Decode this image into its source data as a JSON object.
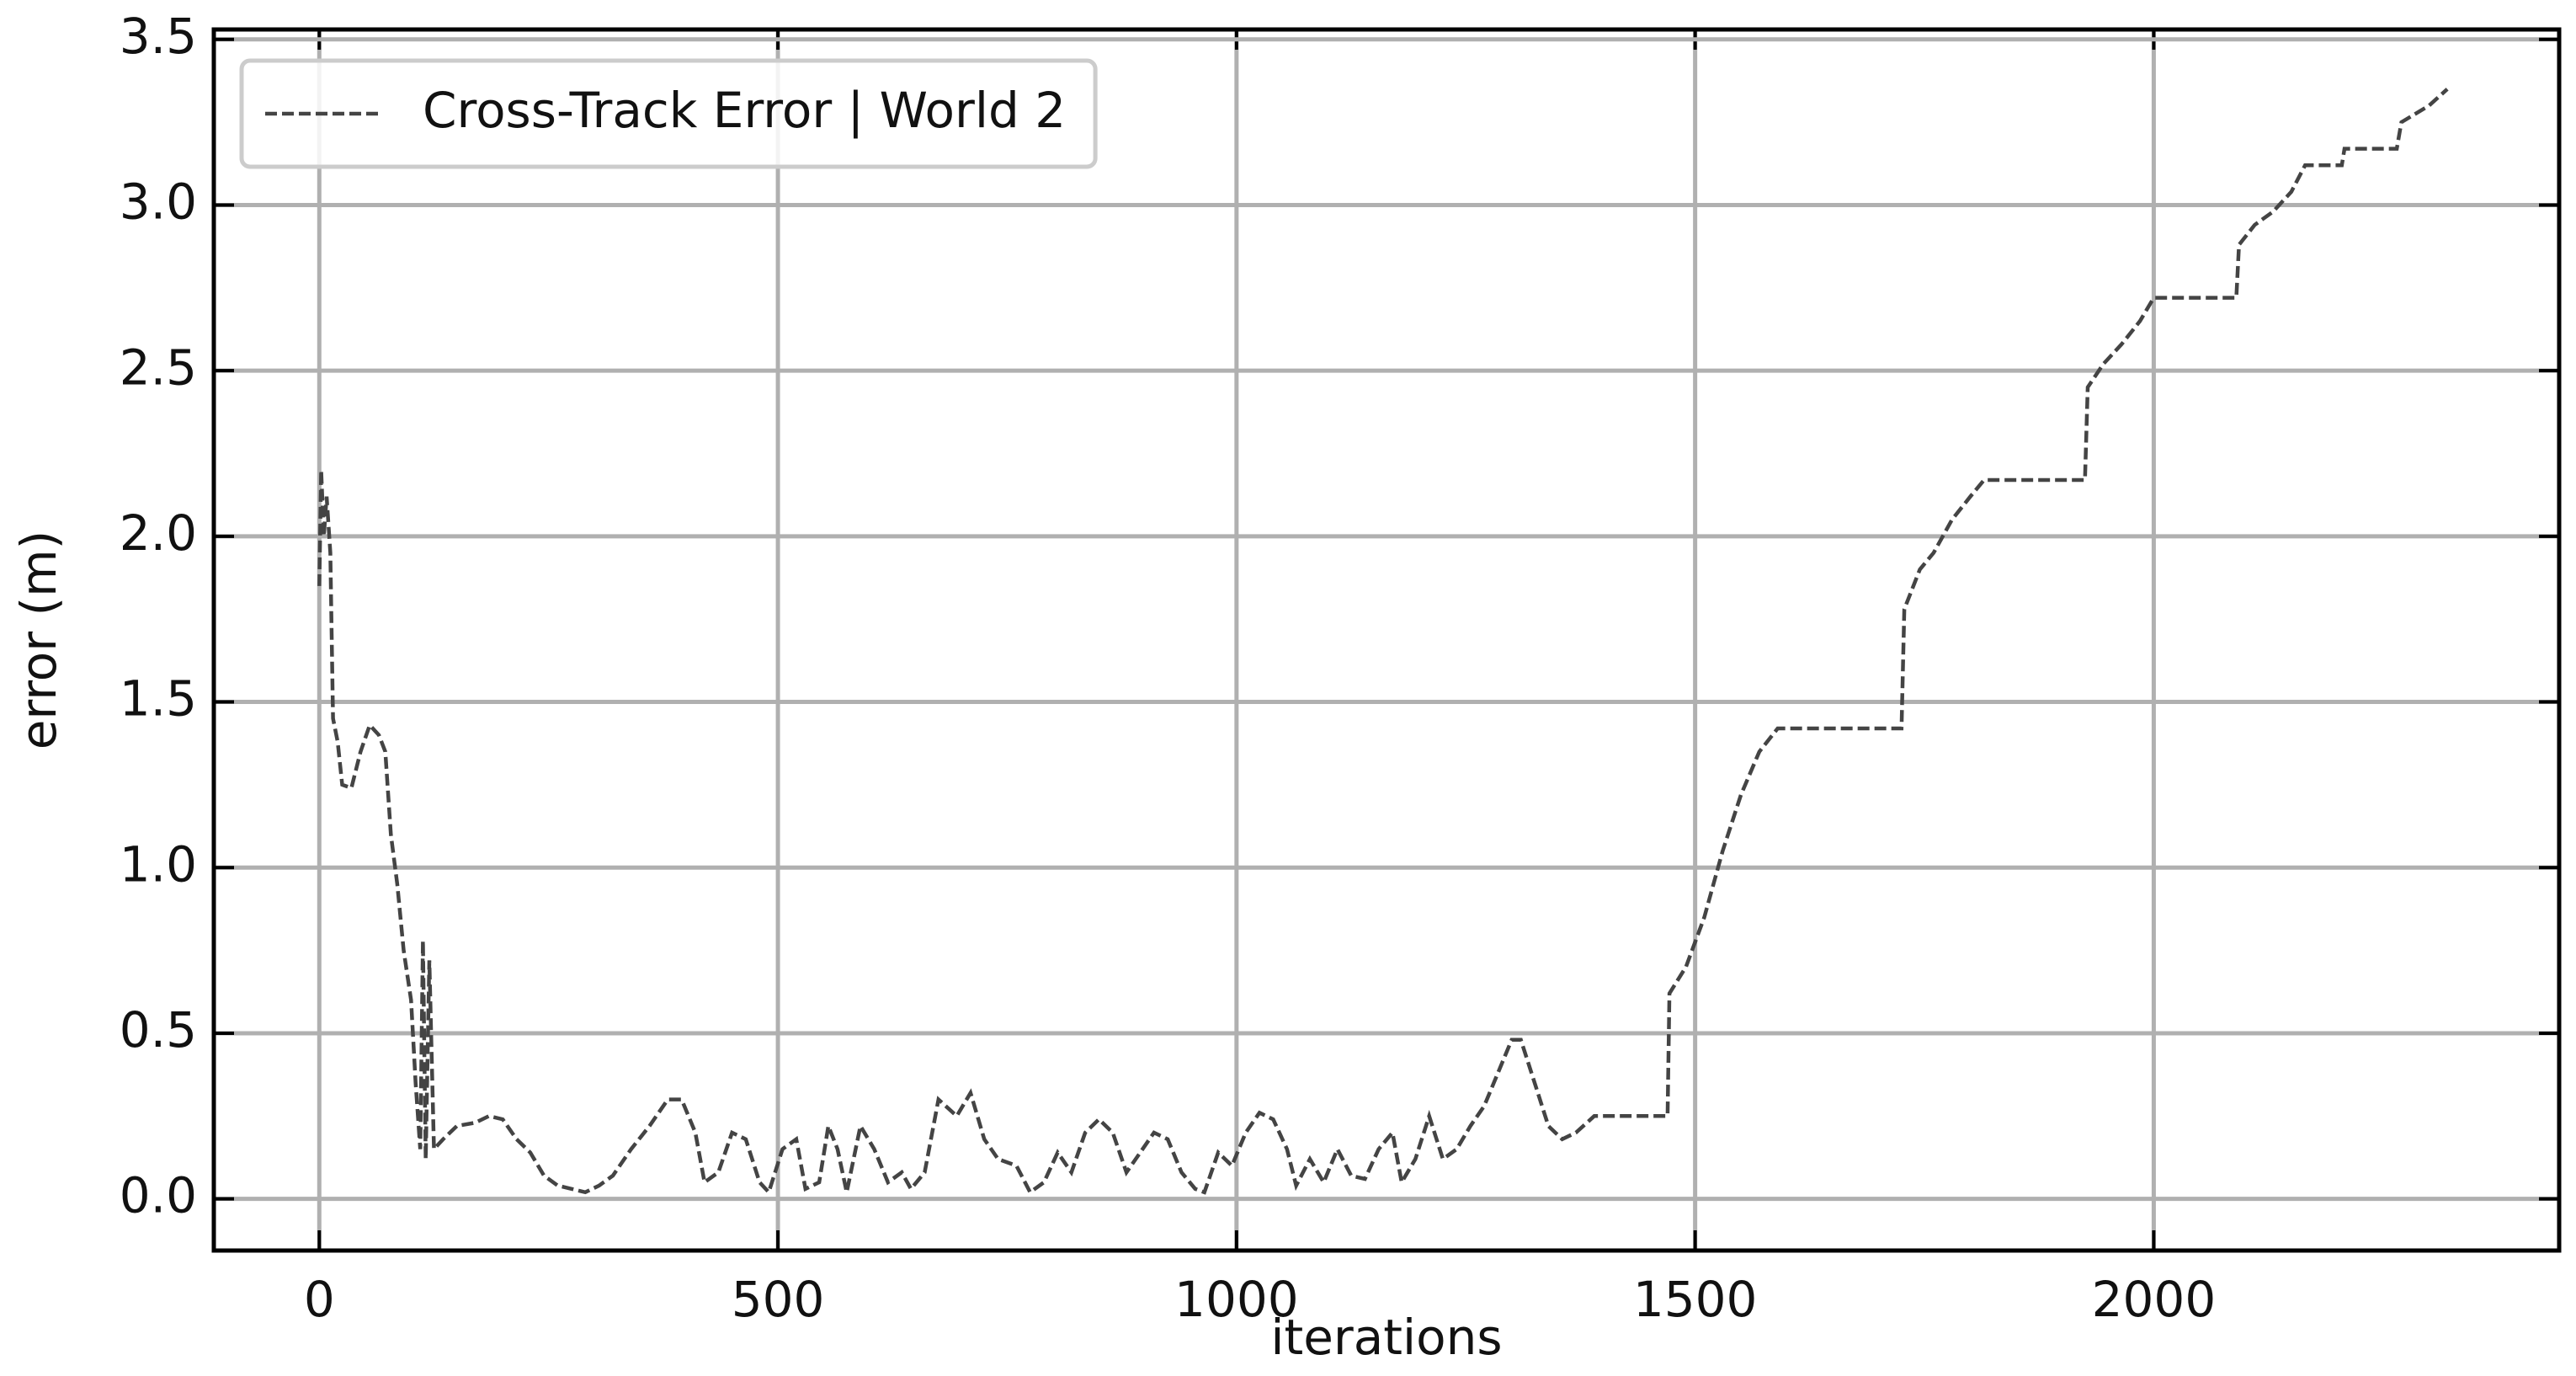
{
  "chart_data": {
    "type": "line",
    "xlabel": "iterations",
    "ylabel": "error (m)",
    "x": [
      0,
      2,
      5,
      8,
      12,
      15,
      20,
      25,
      35,
      45,
      55,
      65,
      72,
      78,
      85,
      92,
      100,
      105,
      110,
      113,
      116,
      120,
      125,
      135,
      150,
      170,
      185,
      200,
      215,
      230,
      245,
      260,
      275,
      290,
      305,
      320,
      340,
      360,
      380,
      395,
      410,
      420,
      435,
      450,
      465,
      480,
      490,
      505,
      520,
      530,
      545,
      555,
      565,
      575,
      590,
      605,
      620,
      635,
      645,
      660,
      675,
      695,
      710,
      725,
      740,
      760,
      775,
      790,
      805,
      820,
      835,
      850,
      865,
      880,
      895,
      910,
      925,
      940,
      955,
      965,
      980,
      995,
      1010,
      1025,
      1040,
      1055,
      1065,
      1080,
      1095,
      1110,
      1125,
      1140,
      1155,
      1170,
      1180,
      1195,
      1210,
      1225,
      1240,
      1255,
      1270,
      1285,
      1300,
      1310,
      1325,
      1340,
      1355,
      1370,
      1390,
      1470,
      1472,
      1490,
      1510,
      1530,
      1550,
      1570,
      1590,
      1725,
      1728,
      1745,
      1760,
      1780,
      1800,
      1815,
      1925,
      1928,
      1945,
      1965,
      1985,
      2000,
      2090,
      2093,
      2110,
      2130,
      2150,
      2165,
      2205,
      2208,
      2265,
      2270,
      2300,
      2320
    ],
    "series": [
      {
        "name": "Cross-Track Error | World 2",
        "color": "#444444",
        "values": [
          1.85,
          2.2,
          2.0,
          2.12,
          1.95,
          1.45,
          1.38,
          1.25,
          1.24,
          1.35,
          1.43,
          1.4,
          1.35,
          1.1,
          0.95,
          0.75,
          0.6,
          0.35,
          0.15,
          0.78,
          0.12,
          0.72,
          0.15,
          0.18,
          0.22,
          0.23,
          0.25,
          0.24,
          0.18,
          0.14,
          0.07,
          0.04,
          0.03,
          0.02,
          0.04,
          0.07,
          0.15,
          0.22,
          0.3,
          0.3,
          0.2,
          0.05,
          0.08,
          0.2,
          0.18,
          0.05,
          0.02,
          0.15,
          0.18,
          0.03,
          0.05,
          0.22,
          0.15,
          0.02,
          0.22,
          0.15,
          0.05,
          0.08,
          0.03,
          0.08,
          0.3,
          0.25,
          0.32,
          0.18,
          0.12,
          0.1,
          0.02,
          0.05,
          0.14,
          0.08,
          0.2,
          0.24,
          0.2,
          0.08,
          0.14,
          0.2,
          0.18,
          0.08,
          0.03,
          0.02,
          0.14,
          0.1,
          0.2,
          0.26,
          0.24,
          0.15,
          0.04,
          0.12,
          0.05,
          0.15,
          0.07,
          0.06,
          0.15,
          0.2,
          0.05,
          0.12,
          0.25,
          0.12,
          0.15,
          0.22,
          0.28,
          0.38,
          0.48,
          0.48,
          0.35,
          0.22,
          0.18,
          0.2,
          0.25,
          0.25,
          0.62,
          0.7,
          0.85,
          1.05,
          1.22,
          1.35,
          1.42,
          1.42,
          1.78,
          1.9,
          1.95,
          2.05,
          2.12,
          2.17,
          2.17,
          2.45,
          2.52,
          2.58,
          2.65,
          2.72,
          2.72,
          2.88,
          2.94,
          2.98,
          3.04,
          3.12,
          3.12,
          3.17,
          3.17,
          3.25,
          3.3,
          3.35
        ]
      }
    ],
    "xlim": [
      -115,
      2442
    ],
    "xticks": [
      0,
      500,
      1000,
      1500,
      2000
    ],
    "ylim": [
      -0.156,
      3.53
    ],
    "yticks": [
      {
        "value": 0,
        "label": "0.0"
      },
      {
        "value": 0.5,
        "label": "0.5"
      },
      {
        "value": 1,
        "label": "1.0"
      },
      {
        "value": 1.5,
        "label": "1.5"
      },
      {
        "value": 2,
        "label": "2.0"
      },
      {
        "value": 2.5,
        "label": "2.5"
      },
      {
        "value": 3,
        "label": "3.0"
      },
      {
        "value": 3.5,
        "label": "3.5"
      }
    ],
    "grid": true,
    "legend": "upper left",
    "dashed": true
  }
}
